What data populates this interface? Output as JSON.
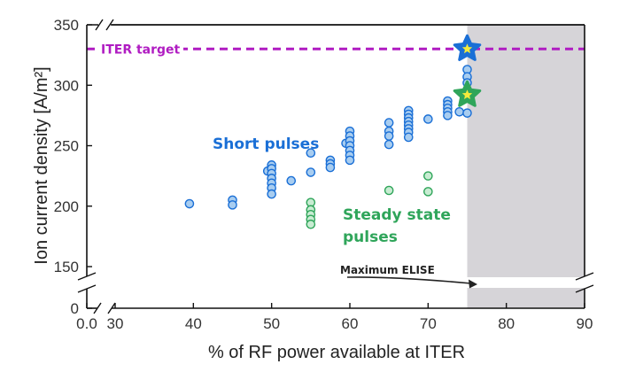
{
  "chart_data": {
    "type": "scatter",
    "xlabel": "% of RF power available at ITER",
    "ylabel": "Ion current density [A/m²]",
    "xlim": [
      0,
      90
    ],
    "xticks": [
      0,
      30,
      40,
      50,
      60,
      70,
      80,
      90
    ],
    "xtick_labels": [
      "0.0",
      "30",
      "40",
      "50",
      "60",
      "70",
      "80",
      "90"
    ],
    "x_break_between": [
      0,
      30
    ],
    "ylim": [
      0,
      350
    ],
    "yticks": [
      0,
      150,
      200,
      250,
      300,
      350
    ],
    "ytick_labels": [
      "0",
      "150",
      "200",
      "250",
      "300",
      "350"
    ],
    "y_break_between": [
      0,
      150
    ],
    "grid": false,
    "colors": {
      "short": "#1a6fd6",
      "short_fill": "#a8cdf0",
      "steady": "#2fa55a",
      "steady_fill": "#c8ecd2",
      "target": "#b01cc2",
      "shade": "#d6d4d8",
      "star_center": "#f4ea3c"
    },
    "series": [
      {
        "name": "Short pulses",
        "points": [
          [
            39.5,
            202
          ],
          [
            45,
            205
          ],
          [
            45,
            201
          ],
          [
            49.5,
            229
          ],
          [
            50,
            234
          ],
          [
            50,
            231
          ],
          [
            50,
            227
          ],
          [
            50,
            223
          ],
          [
            50,
            219
          ],
          [
            50,
            215
          ],
          [
            50,
            210
          ],
          [
            52.5,
            221
          ],
          [
            55,
            244
          ],
          [
            55,
            228
          ],
          [
            57.5,
            238
          ],
          [
            57.5,
            235
          ],
          [
            57.5,
            232
          ],
          [
            59.5,
            252
          ],
          [
            60,
            262
          ],
          [
            60,
            258
          ],
          [
            60,
            254
          ],
          [
            60,
            250
          ],
          [
            60,
            246
          ],
          [
            60,
            242
          ],
          [
            60,
            238
          ],
          [
            65,
            269
          ],
          [
            65,
            262
          ],
          [
            65,
            258
          ],
          [
            65,
            251
          ],
          [
            67.5,
            279
          ],
          [
            67.5,
            276
          ],
          [
            67.5,
            273
          ],
          [
            67.5,
            270
          ],
          [
            67.5,
            267
          ],
          [
            67.5,
            264
          ],
          [
            67.5,
            261
          ],
          [
            67.5,
            257
          ],
          [
            70,
            272
          ],
          [
            72.5,
            287
          ],
          [
            72.5,
            284
          ],
          [
            72.5,
            281
          ],
          [
            72.5,
            278
          ],
          [
            72.5,
            275
          ],
          [
            74,
            278
          ],
          [
            75,
            277
          ],
          [
            75,
            313
          ],
          [
            75,
            307
          ],
          [
            75,
            302
          ]
        ]
      },
      {
        "name": "Steady state pulses",
        "points": [
          [
            55,
            203
          ],
          [
            55,
            197
          ],
          [
            55,
            193
          ],
          [
            55,
            189
          ],
          [
            55,
            185
          ],
          [
            65,
            213
          ],
          [
            70,
            225
          ],
          [
            70,
            212
          ]
        ]
      }
    ],
    "highlights": [
      {
        "kind": "star",
        "x": 75,
        "y": 330,
        "color": "#1a6fd6"
      },
      {
        "kind": "star",
        "x": 75,
        "y": 292,
        "color": "#2fa55a"
      }
    ],
    "reference_line": {
      "y": 330,
      "label": "ITER target"
    },
    "shaded_region": {
      "x_from": 75,
      "x_to": 90
    },
    "annotations": {
      "short_pulses": "Short pulses",
      "steady_line1": "Steady state",
      "steady_line2": "pulses",
      "max_elise": "Maximum ELISE"
    }
  }
}
